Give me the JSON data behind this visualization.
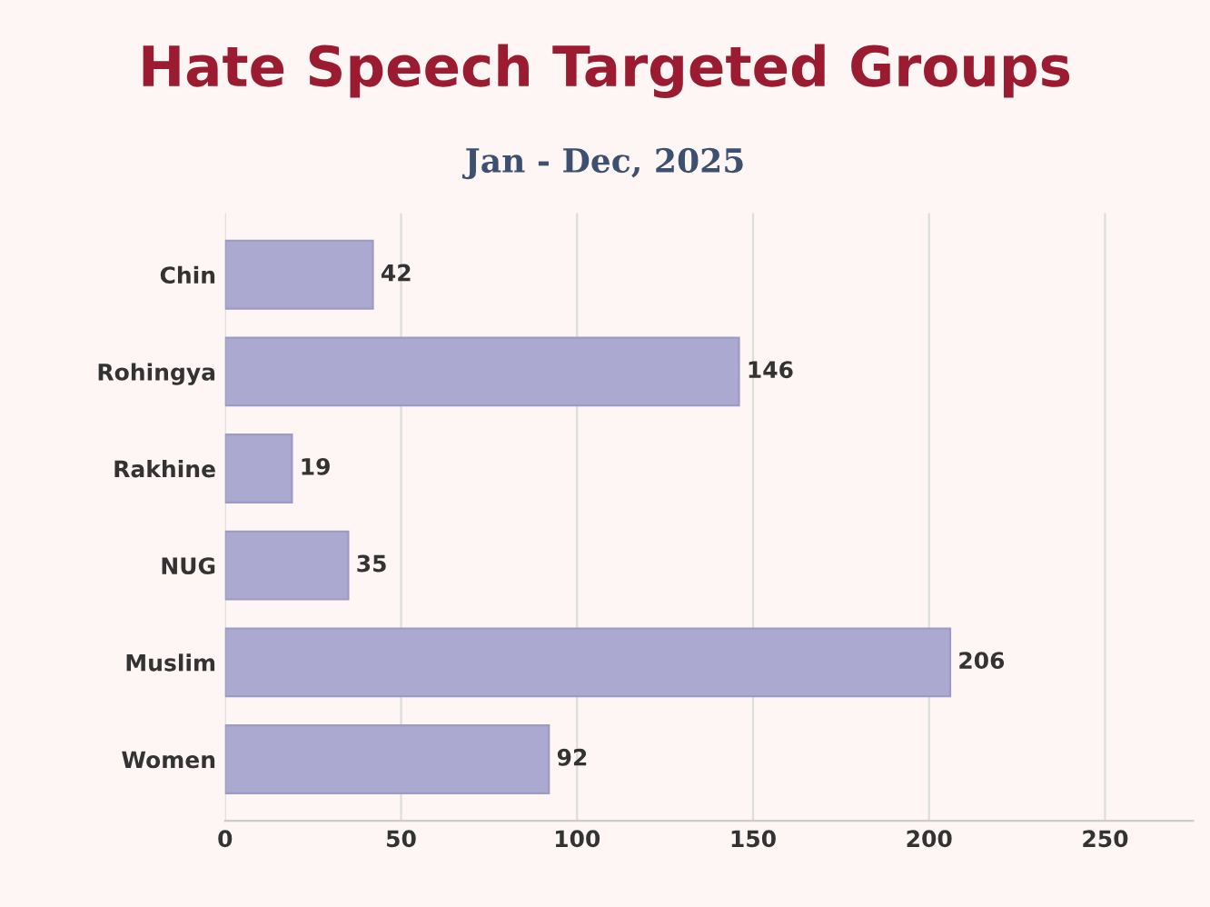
{
  "chart_data": {
    "type": "bar",
    "orientation": "horizontal",
    "title": "Hate Speech Targeted Groups",
    "subtitle": "Jan - Dec, 2025",
    "categories": [
      "Chin",
      "Rohingya",
      "Rakhine",
      "NUG",
      "Muslim",
      "Women"
    ],
    "values": [
      42,
      146,
      19,
      35,
      206,
      92
    ],
    "color": "#aba9cf",
    "xlim": [
      0,
      275
    ],
    "xticks": [
      0,
      50,
      100,
      150,
      200,
      250
    ],
    "grid": "x",
    "data_labels": true
  }
}
